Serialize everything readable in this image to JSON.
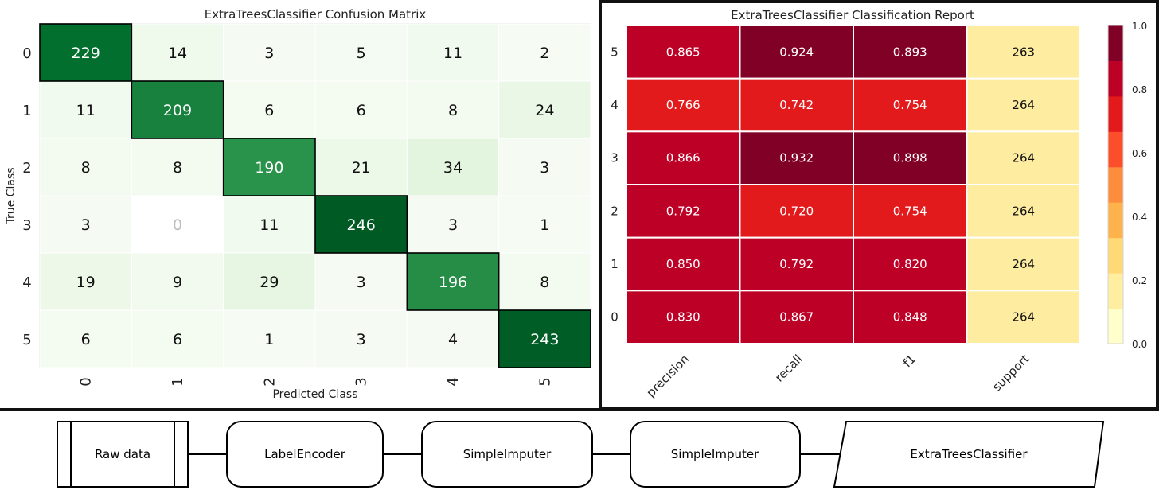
{
  "chart_data": [
    {
      "type": "heatmap",
      "title": "ExtraTreesClassifier Confusion Matrix",
      "xlabel": "Predicted Class",
      "ylabel": "True Class",
      "x_categories": [
        "0",
        "1",
        "2",
        "3",
        "4",
        "5"
      ],
      "y_categories": [
        "0",
        "1",
        "2",
        "3",
        "4",
        "5"
      ],
      "values": [
        [
          229,
          14,
          3,
          5,
          11,
          2
        ],
        [
          11,
          209,
          6,
          6,
          8,
          24
        ],
        [
          8,
          8,
          190,
          21,
          34,
          3
        ],
        [
          3,
          0,
          11,
          246,
          3,
          1
        ],
        [
          19,
          9,
          29,
          3,
          196,
          8
        ],
        [
          6,
          6,
          1,
          3,
          4,
          243
        ]
      ],
      "colormap": "Greens"
    },
    {
      "type": "heatmap",
      "title": "ExtraTreesClassifier Classification Report",
      "x_categories": [
        "precision",
        "recall",
        "f1",
        "support"
      ],
      "y_categories": [
        "5",
        "4",
        "3",
        "2",
        "1",
        "0"
      ],
      "values": [
        [
          0.865,
          0.924,
          0.893,
          263
        ],
        [
          0.766,
          0.742,
          0.754,
          264
        ],
        [
          0.866,
          0.932,
          0.898,
          264
        ],
        [
          0.792,
          0.72,
          0.754,
          264
        ],
        [
          0.85,
          0.792,
          0.82,
          264
        ],
        [
          0.83,
          0.867,
          0.848,
          264
        ]
      ],
      "labels": [
        [
          "0.865",
          "0.924",
          "0.893",
          "263"
        ],
        [
          "0.766",
          "0.742",
          "0.754",
          "264"
        ],
        [
          "0.866",
          "0.932",
          "0.898",
          "264"
        ],
        [
          "0.792",
          "0.720",
          "0.754",
          "264"
        ],
        [
          "0.850",
          "0.792",
          "0.820",
          "264"
        ],
        [
          "0.830",
          "0.867",
          "0.848",
          "264"
        ]
      ],
      "colorbar": {
        "ticks": [
          "0.0",
          "0.2",
          "0.4",
          "0.6",
          "0.8",
          "1.0"
        ],
        "range": [
          0,
          1
        ],
        "colors": [
          "#ffffcc",
          "#ffeda0",
          "#fed976",
          "#feb24c",
          "#fd8d3c",
          "#fc4e2a",
          "#e31a1c",
          "#bd0026",
          "#800026"
        ]
      },
      "support_color": "#feeca0"
    }
  ],
  "pipeline": {
    "steps": [
      "Raw data",
      "LabelEncoder",
      "SimpleImputer",
      "SimpleImputer",
      "ExtraTreesClassifier"
    ]
  }
}
